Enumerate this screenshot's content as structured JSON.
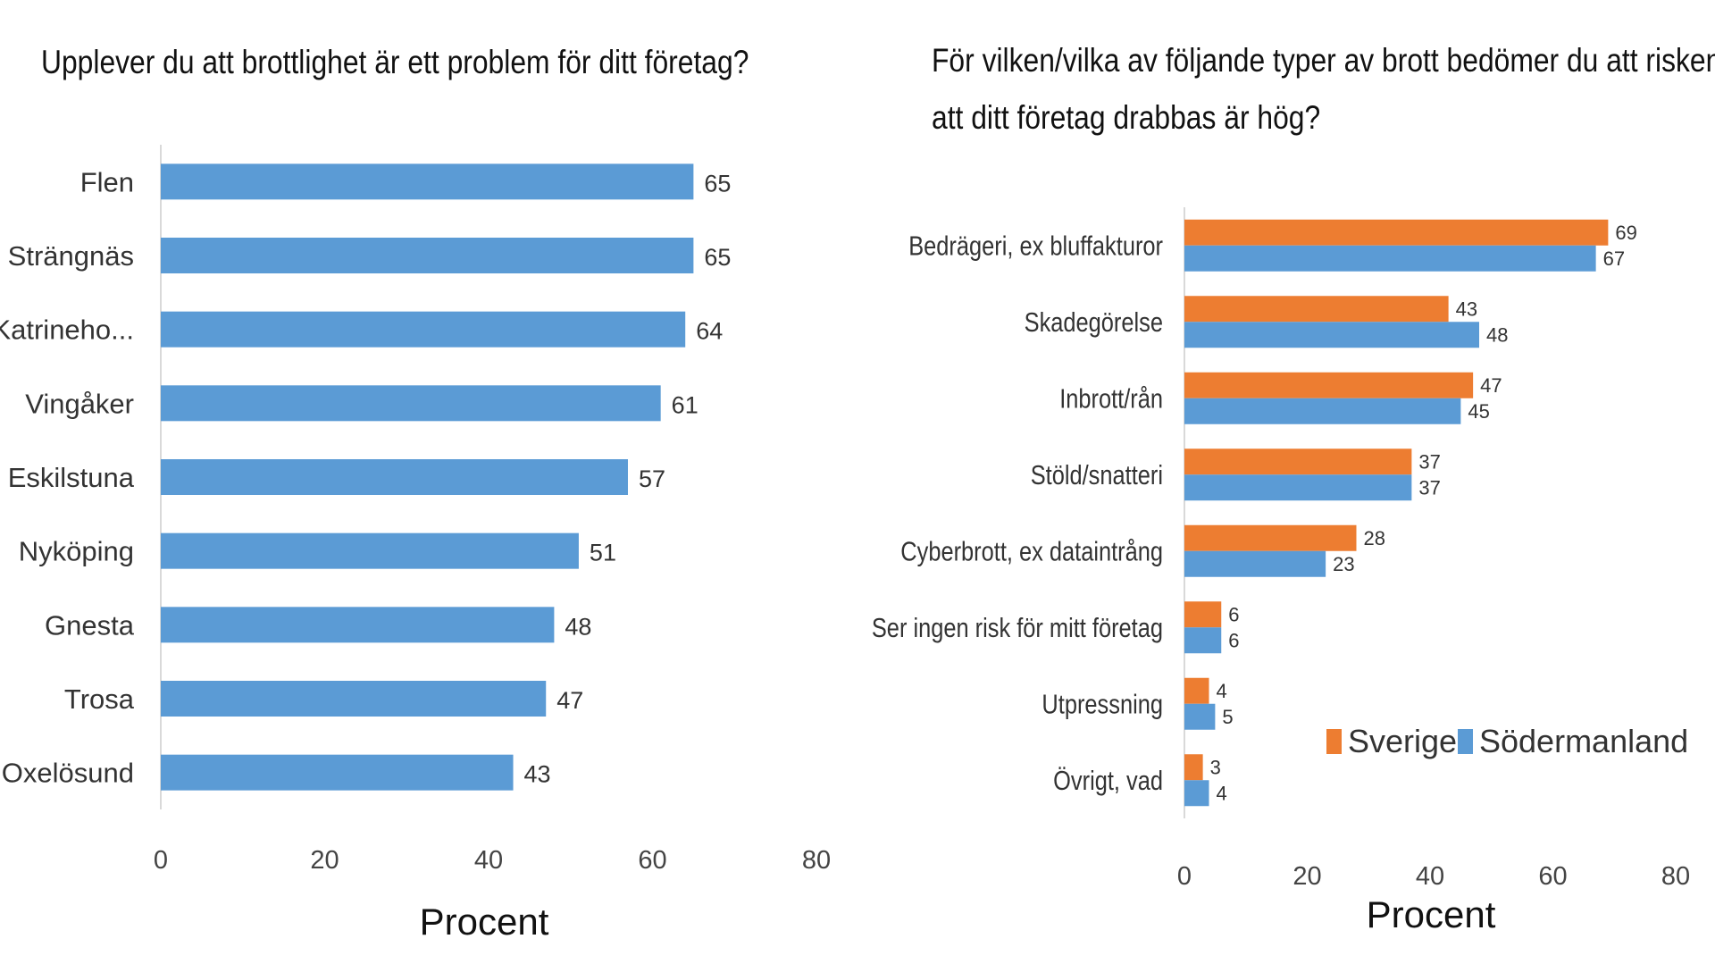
{
  "chart_data": [
    {
      "type": "bar",
      "orientation": "horizontal",
      "title": "Upplever du att brottlighet är ett problem för ditt företag?",
      "categories": [
        "Flen",
        "Strängnäs",
        "Katrineho...",
        "Vingåker",
        "Eskilstuna",
        "Nyköping",
        "Gnesta",
        "Trosa",
        "Oxelösund"
      ],
      "values": [
        65,
        65,
        64,
        61,
        57,
        51,
        48,
        47,
        43
      ],
      "xlabel": "Procent",
      "ylabel": "",
      "xlim": [
        0,
        80
      ],
      "xticks": [
        0,
        20,
        40,
        60,
        80
      ],
      "color": "#5B9BD5",
      "grid": false
    },
    {
      "type": "bar",
      "orientation": "horizontal",
      "title": "För vilken/vilka av följande typer av brott  bedömer du att risken att ditt företag drabbas är hög?",
      "title_lines": [
        "För vilken/vilka av följande typer av brott  bedömer du att risken",
        "att ditt företag drabbas är hög?"
      ],
      "categories": [
        "Bedrägeri, ex bluffakturor",
        "Skadegörelse",
        "Inbrott/rån",
        "Stöld/snatteri",
        "Cyberbrott, ex dataintrång",
        "Ser ingen risk för mitt företag",
        "Utpressning",
        "Övrigt, vad"
      ],
      "series": [
        {
          "name": "Sverige",
          "color": "#ED7D31",
          "values": [
            69,
            43,
            47,
            37,
            28,
            6,
            4,
            3
          ]
        },
        {
          "name": "Södermanland",
          "color": "#5B9BD5",
          "values": [
            67,
            48,
            45,
            37,
            23,
            6,
            5,
            4
          ]
        }
      ],
      "xlabel": "Procent",
      "ylabel": "",
      "xlim": [
        0,
        80
      ],
      "xticks": [
        0,
        20,
        40,
        60,
        80
      ],
      "legend": "bottom-right",
      "grid": false
    }
  ]
}
